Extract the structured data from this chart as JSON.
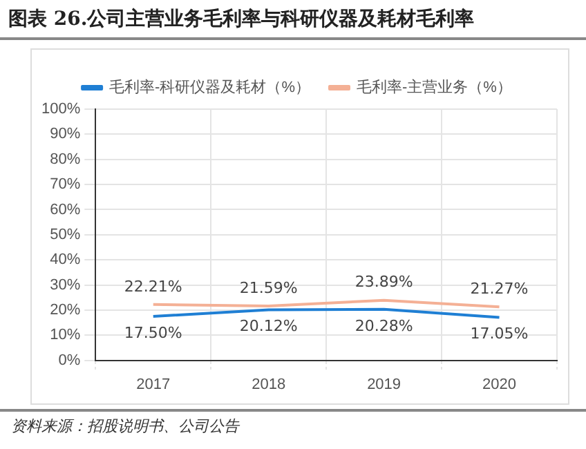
{
  "chart_data": {
    "type": "line",
    "title": "图表 26.公司主营业务毛利率与科研仪器及耗材毛利率",
    "categories": [
      "2017",
      "2018",
      "2019",
      "2020"
    ],
    "series": [
      {
        "name": "毛利率-科研仪器及耗材（%）",
        "color": "#1f7fd4",
        "values": [
          17.5,
          20.12,
          20.28,
          17.05
        ],
        "value_labels": [
          "17.50%",
          "20.12%",
          "20.28%",
          "17.05%"
        ]
      },
      {
        "name": "毛利率-主营业务（%）",
        "color": "#f4b095",
        "values": [
          22.21,
          21.59,
          23.89,
          21.27
        ],
        "value_labels": [
          "22.21%",
          "21.59%",
          "23.89%",
          "21.27%"
        ]
      }
    ],
    "ylim": [
      0,
      100
    ],
    "yticks": [
      {
        "value": 0,
        "label": "0%"
      },
      {
        "value": 10,
        "label": "10%"
      },
      {
        "value": 20,
        "label": "20%"
      },
      {
        "value": 30,
        "label": "30%"
      },
      {
        "value": 40,
        "label": "40%"
      },
      {
        "value": 50,
        "label": "50%"
      },
      {
        "value": 60,
        "label": "60%"
      },
      {
        "value": 70,
        "label": "70%"
      },
      {
        "value": 80,
        "label": "80%"
      },
      {
        "value": 90,
        "label": "90%"
      },
      {
        "value": 100,
        "label": "100%"
      }
    ],
    "grid": true,
    "legend": "top",
    "marker": "none",
    "line_style": "solid",
    "annotations": [
      "资料来源：招股说明书、公司公告"
    ]
  }
}
